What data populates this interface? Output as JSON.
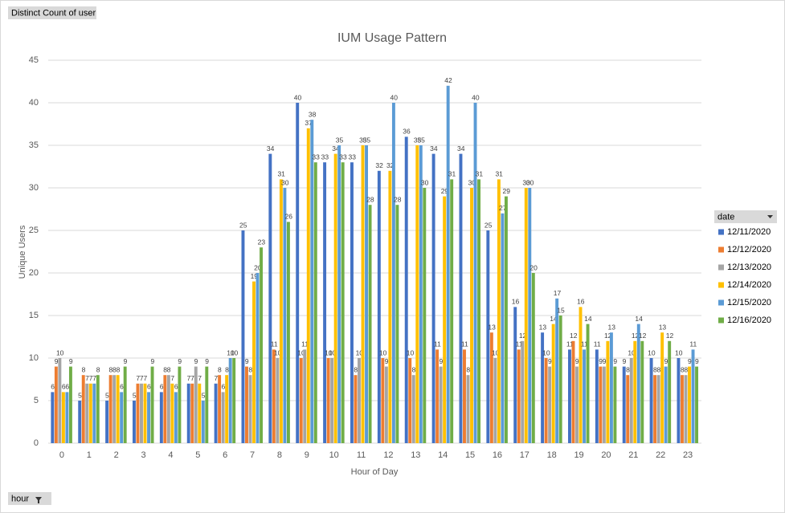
{
  "chart_data": {
    "type": "bar",
    "title": "IUM Usage Pattern",
    "x_label": "Hour of Day",
    "y_label": "Unique Users",
    "value_field": "Distinct Count of user",
    "axis_field": "hour",
    "legend_title": "date",
    "categories": [
      "0",
      "1",
      "2",
      "3",
      "4",
      "5",
      "6",
      "7",
      "8",
      "9",
      "10",
      "11",
      "12",
      "13",
      "14",
      "15",
      "16",
      "17",
      "18",
      "19",
      "20",
      "21",
      "22",
      "23"
    ],
    "series": [
      {
        "name": "12/11/2020",
        "color": "#4472c4",
        "values": [
          6,
          5,
          5,
          5,
          6,
          7,
          7,
          25,
          34,
          40,
          33,
          33,
          32,
          36,
          34,
          34,
          25,
          16,
          13,
          11,
          11,
          9,
          10,
          10
        ]
      },
      {
        "name": "12/12/2020",
        "color": "#ed7d31",
        "values": [
          9,
          8,
          8,
          7,
          8,
          7,
          8,
          9,
          11,
          10,
          10,
          8,
          10,
          10,
          11,
          11,
          13,
          11,
          10,
          12,
          9,
          8,
          8,
          8
        ]
      },
      {
        "name": "12/13/2020",
        "color": "#a5a5a5",
        "values": [
          10,
          7,
          8,
          7,
          8,
          9,
          6,
          8,
          10,
          11,
          10,
          10,
          9,
          8,
          9,
          8,
          10,
          12,
          9,
          9,
          9,
          10,
          8,
          8
        ]
      },
      {
        "name": "12/14/2020",
        "color": "#ffc000",
        "values": [
          6,
          7,
          8,
          7,
          7,
          7,
          8,
          19,
          31,
          37,
          34,
          35,
          32,
          35,
          29,
          30,
          31,
          30,
          14,
          16,
          12,
          12,
          13,
          9
        ]
      },
      {
        "name": "12/15/2020",
        "color": "#5b9bd5",
        "values": [
          6,
          7,
          6,
          6,
          6,
          5,
          10,
          20,
          30,
          38,
          35,
          35,
          40,
          35,
          42,
          40,
          27,
          30,
          17,
          11,
          13,
          14,
          9,
          11
        ]
      },
      {
        "name": "12/16/2020",
        "color": "#70ad47",
        "values": [
          9,
          8,
          9,
          9,
          9,
          9,
          10,
          23,
          26,
          33,
          33,
          28,
          28,
          30,
          31,
          31,
          29,
          20,
          15,
          14,
          9,
          12,
          12,
          9
        ]
      }
    ],
    "ylim": [
      0,
      45
    ],
    "yticks": [
      0,
      5,
      10,
      15,
      20,
      25,
      30,
      35,
      40,
      45
    ],
    "grid": true,
    "legend": "right"
  }
}
